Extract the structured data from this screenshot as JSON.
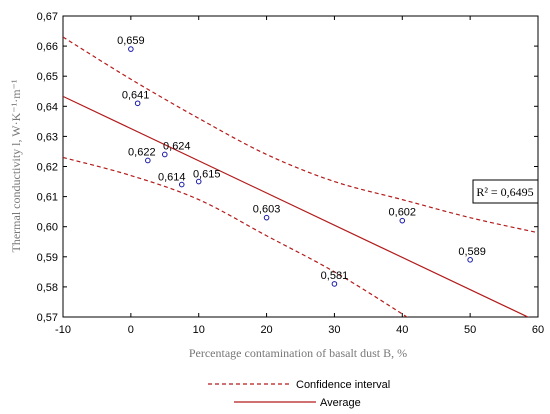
{
  "chart_data": {
    "type": "scatter",
    "xlabel": "Percentage contamination of basalt dust B, %",
    "ylabel": "Thermal conductivity l, W·K⁻¹·m⁻¹",
    "xlim": [
      -10,
      60
    ],
    "ylim": [
      0.57,
      0.67
    ],
    "x_ticks": [
      "-10",
      "0",
      "10",
      "20",
      "30",
      "40",
      "50",
      "60"
    ],
    "y_ticks": [
      "0,57",
      "0,58",
      "0,59",
      "0,60",
      "0,61",
      "0,62",
      "0,63",
      "0,64",
      "0,65",
      "0,66",
      "0,67"
    ],
    "grid": false,
    "points": [
      {
        "x": 0,
        "y": 0.659,
        "label": "0,659"
      },
      {
        "x": 1,
        "y": 0.641,
        "label": "0,641"
      },
      {
        "x": 2.5,
        "y": 0.622,
        "label": "0,622"
      },
      {
        "x": 5,
        "y": 0.624,
        "label": "0,624"
      },
      {
        "x": 7.5,
        "y": 0.614,
        "label": "0,614"
      },
      {
        "x": 10,
        "y": 0.615,
        "label": "0,615"
      },
      {
        "x": 20,
        "y": 0.603,
        "label": "0,603"
      },
      {
        "x": 30,
        "y": 0.581,
        "label": "0,581"
      },
      {
        "x": 40,
        "y": 0.602,
        "label": "0,602"
      },
      {
        "x": 50,
        "y": 0.589,
        "label": "0,589"
      }
    ],
    "regression": {
      "name": "Average",
      "intercept": 0.6326,
      "slope": -0.00107
    },
    "confidence_upper": {
      "name": "Confidence interval",
      "x": [
        -10,
        0,
        10,
        20,
        30,
        40,
        50,
        60
      ],
      "y": [
        0.663,
        0.649,
        0.636,
        0.624,
        0.615,
        0.609,
        0.603,
        0.598
      ]
    },
    "confidence_lower": {
      "name": "Confidence interval",
      "x": [
        -10,
        0,
        10,
        20,
        30,
        40,
        41
      ],
      "y": [
        0.623,
        0.617,
        0.609,
        0.597,
        0.585,
        0.571,
        0.569
      ]
    },
    "annotation": "R² = 0,6495",
    "legend_position": "bottom-center",
    "colors": {
      "points": "#1a1aa8",
      "line": "#b31b1b",
      "frame": "#000000"
    }
  }
}
